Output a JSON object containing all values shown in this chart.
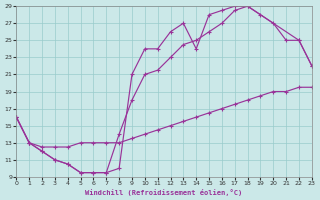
{
  "xlabel": "Windchill (Refroidissement éolien,°C)",
  "bg_color": "#cbe8e8",
  "grid_color": "#99cccc",
  "line_color": "#993399",
  "xmin": 0,
  "xmax": 23,
  "ymin": 9,
  "ymax": 29,
  "yticks": [
    9,
    11,
    13,
    15,
    17,
    19,
    21,
    23,
    25,
    27,
    29
  ],
  "xticks": [
    0,
    1,
    2,
    3,
    4,
    5,
    6,
    7,
    8,
    9,
    10,
    11,
    12,
    13,
    14,
    15,
    16,
    17,
    18,
    19,
    20,
    21,
    22,
    23
  ],
  "line1_x": [
    0,
    1,
    2,
    3,
    4,
    5,
    6,
    7,
    8,
    9,
    10,
    11,
    12,
    13,
    14,
    15,
    16,
    17,
    18,
    19,
    20,
    21,
    22,
    23
  ],
  "line1_y": [
    16,
    13,
    12.5,
    12.5,
    12.5,
    13,
    13,
    13,
    13,
    13.5,
    14,
    14.5,
    15,
    15.5,
    16,
    16.5,
    17,
    17.5,
    18,
    18.5,
    19,
    19,
    19.5,
    19.5
  ],
  "line2_x": [
    0,
    1,
    2,
    3,
    4,
    5,
    6,
    7,
    8,
    9,
    10,
    11,
    12,
    13,
    14,
    15,
    16,
    17,
    18,
    19,
    20,
    21,
    22,
    23
  ],
  "line2_y": [
    16,
    13,
    12,
    11,
    10.5,
    9.5,
    9.5,
    9.5,
    10,
    21,
    24,
    24,
    26,
    27,
    24,
    28,
    28.5,
    29,
    29,
    28,
    27,
    25,
    25,
    22
  ],
  "line3_x": [
    0,
    1,
    2,
    3,
    4,
    5,
    6,
    7,
    8,
    9,
    10,
    11,
    12,
    13,
    14,
    15,
    16,
    17,
    18,
    22,
    23
  ],
  "line3_y": [
    16,
    13,
    12,
    11,
    10.5,
    9.5,
    9.5,
    9.5,
    14,
    18,
    21,
    21.5,
    23,
    24.5,
    25,
    26,
    27,
    28.5,
    29,
    25,
    22
  ]
}
